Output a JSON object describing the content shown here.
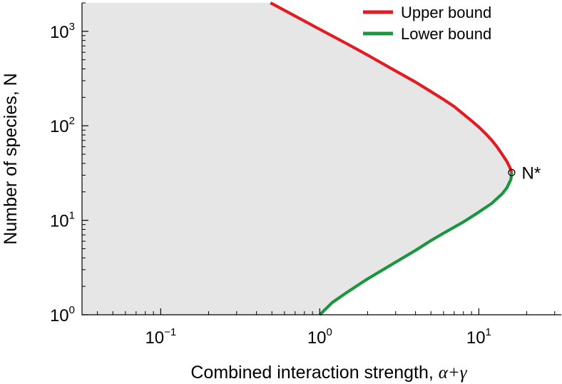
{
  "chart_data": {
    "type": "line",
    "xscale": "log",
    "yscale": "log",
    "xlim": [
      0.032,
      33
    ],
    "ylim": [
      1,
      2000
    ],
    "xticks": [
      {
        "value": 0.1,
        "base": "10",
        "exp": "−1"
      },
      {
        "value": 1,
        "base": "10",
        "exp": "0"
      },
      {
        "value": 10,
        "base": "10",
        "exp": "1"
      }
    ],
    "yticks": [
      {
        "value": 1,
        "base": "10",
        "exp": "0"
      },
      {
        "value": 10,
        "base": "10",
        "exp": "1"
      },
      {
        "value": 100,
        "base": "10",
        "exp": "2"
      },
      {
        "value": 1000,
        "base": "10",
        "exp": "3"
      }
    ],
    "xlabel_text": "Combined interaction strength, ",
    "xlabel_math": "α+γ",
    "ylabel": "Number of species, N",
    "grid": false,
    "legend_position": "top-right",
    "shaded_region_color": "#e6e6e6",
    "series": [
      {
        "name": "Upper bound",
        "color": "#e31b23",
        "points": [
          [
            0.49,
            2000
          ],
          [
            0.7,
            1450
          ],
          [
            1.0,
            1050
          ],
          [
            1.5,
            730
          ],
          [
            2.0,
            560
          ],
          [
            3.0,
            380
          ],
          [
            4.0,
            290
          ],
          [
            5.0,
            230
          ],
          [
            6.0,
            190
          ],
          [
            7.0,
            160
          ],
          [
            8.0,
            133
          ],
          [
            9.0,
            113
          ],
          [
            10.0,
            97
          ],
          [
            11.0,
            83
          ],
          [
            12.0,
            71
          ],
          [
            13.0,
            60
          ],
          [
            14.0,
            50
          ],
          [
            15.0,
            42
          ],
          [
            15.7,
            36
          ],
          [
            16.1,
            32
          ]
        ]
      },
      {
        "name": "Lower bound",
        "color": "#1a9641",
        "points": [
          [
            16.1,
            32
          ],
          [
            15.9,
            27
          ],
          [
            15.0,
            22
          ],
          [
            14.0,
            19
          ],
          [
            12.0,
            15
          ],
          [
            10.0,
            12.2
          ],
          [
            8.0,
            9.6
          ],
          [
            6.0,
            7.3
          ],
          [
            5.0,
            6.1
          ],
          [
            4.0,
            4.8
          ],
          [
            3.0,
            3.6
          ],
          [
            2.0,
            2.4
          ],
          [
            1.5,
            1.75
          ],
          [
            1.2,
            1.35
          ],
          [
            1.0,
            1.0
          ]
        ]
      }
    ],
    "annotations": [
      {
        "label": "N*",
        "x": 16.1,
        "y": 32,
        "marker": "open-circle"
      }
    ]
  }
}
